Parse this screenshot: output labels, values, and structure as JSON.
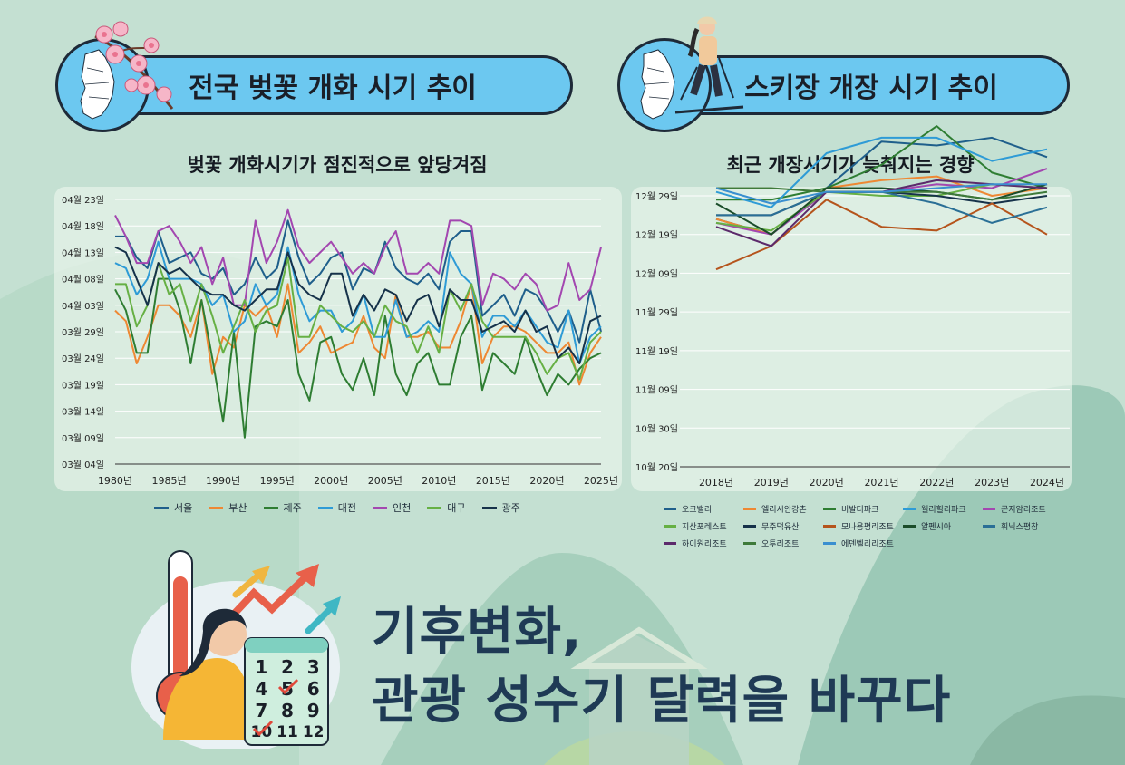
{
  "left": {
    "header": "전국 벚꽃 개화 시기 추이",
    "subtitle": "벚꽃 개화시기가 점진적으로 앞당겨짐"
  },
  "right": {
    "header": "스키장 개장 시기 추이",
    "subtitle": "최근 개장시기가 늦춰지는 경향"
  },
  "bottom": {
    "title_line1": "기후변화,",
    "title_line2": "관광 성수기 달력을 바꾸다",
    "calendar_numbers": [
      "1",
      "2",
      "3",
      "4",
      "5",
      "6",
      "7",
      "8",
      "9",
      "10",
      "11",
      "12"
    ]
  },
  "icons": {
    "left_badge": "korea-map-cherry-blossom-icon",
    "right_badge": "korea-map-skier-icon",
    "illustration": "thermometer-calendar-woman-illustration",
    "check_color": "#e0483a"
  },
  "chart_data": [
    {
      "type": "line",
      "title": "벚꽃 개화시기가 점진적으로 앞당겨짐",
      "xlabel": "",
      "ylabel": "",
      "x_ticks": [
        "1980년",
        "1985년",
        "1990년",
        "1995년",
        "2000년",
        "2005년",
        "2010년",
        "2015년",
        "2020년",
        "2025년"
      ],
      "y_ticks": [
        "03월 04일",
        "03월 09일",
        "03월 14일",
        "03월 19일",
        "03월 24일",
        "03월 29일",
        "04월 03일",
        "04월 08일",
        "04월 13일",
        "04월 18일",
        "04월 23일"
      ],
      "ylim": [
        "03월 04일",
        "04월 23일"
      ],
      "xlim": [
        1980,
        2025
      ],
      "grid": true,
      "legend": "bottom",
      "x_start": 1980,
      "series": [
        {
          "name": "서울",
          "color": "#1f5f8b",
          "values": [
            43,
            43,
            39,
            37,
            44,
            38,
            39,
            40,
            36,
            35,
            37,
            32,
            34,
            39,
            35,
            37,
            46,
            39,
            34,
            36,
            39,
            40,
            33,
            37,
            36,
            42,
            37,
            35,
            34,
            36,
            33,
            42,
            44,
            44,
            28,
            30,
            32,
            28,
            33,
            32,
            29,
            25,
            29,
            23,
            33,
            25
          ]
        },
        {
          "name": "부산",
          "color": "#ee8833",
          "values": [
            29,
            27,
            19,
            24,
            30,
            30,
            28,
            24,
            31,
            17,
            24,
            22,
            30,
            28,
            30,
            24,
            34,
            21,
            23,
            26,
            21,
            22,
            23,
            28,
            22,
            20,
            32,
            24,
            24,
            25,
            22,
            22,
            27,
            34,
            19,
            24,
            26,
            26,
            25,
            23,
            21,
            21,
            23,
            15,
            21,
            24
          ]
        },
        {
          "name": "제주",
          "color": "#2e7d32",
          "values": [
            33,
            29,
            21,
            21,
            35,
            35,
            29,
            19,
            31,
            20,
            8,
            25,
            5,
            26,
            27,
            26,
            31,
            17,
            12,
            23,
            24,
            17,
            14,
            20,
            13,
            28,
            17,
            13,
            19,
            21,
            15,
            15,
            24,
            28,
            14,
            21,
            19,
            17,
            24,
            18,
            13,
            17,
            15,
            18,
            20,
            21
          ]
        },
        {
          "name": "대전",
          "color": "#2e9bd6",
          "values": [
            38,
            37,
            32,
            35,
            42,
            35,
            35,
            35,
            34,
            30,
            32,
            25,
            27,
            34,
            30,
            32,
            41,
            32,
            27,
            29,
            29,
            25,
            27,
            32,
            24,
            24,
            31,
            24,
            25,
            27,
            25,
            40,
            36,
            34,
            24,
            28,
            28,
            26,
            29,
            26,
            23,
            22,
            29,
            19,
            24,
            26
          ]
        },
        {
          "name": "인천",
          "color": "#a347b0",
          "values": [
            47,
            43,
            38,
            38,
            44,
            45,
            42,
            38,
            41,
            34,
            39,
            30,
            30,
            46,
            38,
            42,
            48,
            41,
            38,
            40,
            42,
            39,
            36,
            38,
            36,
            41,
            44,
            36,
            36,
            38,
            36,
            46,
            46,
            45,
            30,
            36,
            35,
            33,
            36,
            34,
            29,
            30,
            38,
            31,
            33,
            41
          ]
        },
        {
          "name": "대구",
          "color": "#66b044",
          "values": [
            34,
            34,
            26,
            30,
            38,
            32,
            34,
            27,
            34,
            28,
            21,
            26,
            31,
            25,
            29,
            30,
            39,
            24,
            24,
            30,
            28,
            26,
            25,
            27,
            24,
            30,
            27,
            26,
            21,
            26,
            21,
            33,
            29,
            34,
            27,
            24,
            24,
            24,
            24,
            21,
            17,
            20,
            21,
            16,
            23,
            25
          ]
        },
        {
          "name": "광주",
          "color": "#16324a",
          "values": [
            41,
            40,
            35,
            30,
            38,
            36,
            37,
            35,
            33,
            32,
            32,
            30,
            29,
            31,
            33,
            33,
            40,
            34,
            32,
            31,
            36,
            36,
            28,
            32,
            29,
            33,
            32,
            27,
            31,
            32,
            26,
            33,
            31,
            31,
            25,
            26,
            27,
            25,
            29,
            25,
            26,
            20,
            22,
            19,
            27,
            28
          ]
        }
      ]
    },
    {
      "type": "line",
      "title": "최근 개장시기가 늦춰지는 경향",
      "xlabel": "",
      "ylabel": "",
      "categories": [
        "2018년",
        "2019년",
        "2020년",
        "2021년",
        "2022년",
        "2023년",
        "2024년"
      ],
      "y_ticks": [
        "10월 20일",
        "10월 30일",
        "11월 09일",
        "11월 19일",
        "11월 29일",
        "12월 09일",
        "12월 19일",
        "12월 29일"
      ],
      "ylim": [
        "10월 20일",
        "12월 29일"
      ],
      "grid": true,
      "legend": "bottom",
      "series": [
        {
          "name": "오크밸리",
          "color": "#1f5f8b",
          "values": [
            64,
            60,
            72,
            84,
            83,
            85,
            80
          ]
        },
        {
          "name": "엘리시안강촌",
          "color": "#ee8833",
          "values": [
            64,
            60,
            72,
            74,
            75,
            70,
            72
          ]
        },
        {
          "name": "비발디파크",
          "color": "#2e7d32",
          "values": [
            69,
            69,
            72,
            78,
            88,
            76,
            72
          ]
        },
        {
          "name": "웰리힐리파크",
          "color": "#2e9bd6",
          "values": [
            71,
            67,
            81,
            85,
            85,
            79,
            82
          ]
        },
        {
          "name": "곤지암리조트",
          "color": "#a347b0",
          "values": [
            63,
            60,
            71,
            71,
            73,
            72,
            77
          ]
        },
        {
          "name": "지산포레스트",
          "color": "#66b044",
          "values": [
            63,
            61,
            71,
            70,
            70,
            73,
            72
          ]
        },
        {
          "name": "무주덕유산",
          "color": "#16324a",
          "values": [
            65,
            65,
            71,
            71,
            70,
            68,
            70
          ]
        },
        {
          "name": "모나용평리조트",
          "color": "#b5541c",
          "values": [
            51,
            57,
            69,
            62,
            61,
            68,
            60
          ]
        },
        {
          "name": "알펜시아",
          "color": "#1b4d2a",
          "values": [
            68,
            60,
            72,
            72,
            71,
            69,
            73
          ]
        },
        {
          "name": "휘닉스평창",
          "color": "#2a6f96",
          "values": [
            65,
            65,
            71,
            71,
            68,
            63,
            67
          ]
        },
        {
          "name": "하이원리조트",
          "color": "#5c2a6b",
          "values": [
            62,
            57,
            71,
            71,
            74,
            73,
            72
          ]
        },
        {
          "name": "오투리조트",
          "color": "#3e7a3a",
          "values": [
            72,
            72,
            71,
            71,
            71,
            69,
            71
          ]
        },
        {
          "name": "에덴벨리리조트",
          "color": "#3a8fd0",
          "values": [
            72,
            68,
            71,
            71,
            72,
            73,
            73
          ]
        }
      ]
    }
  ]
}
